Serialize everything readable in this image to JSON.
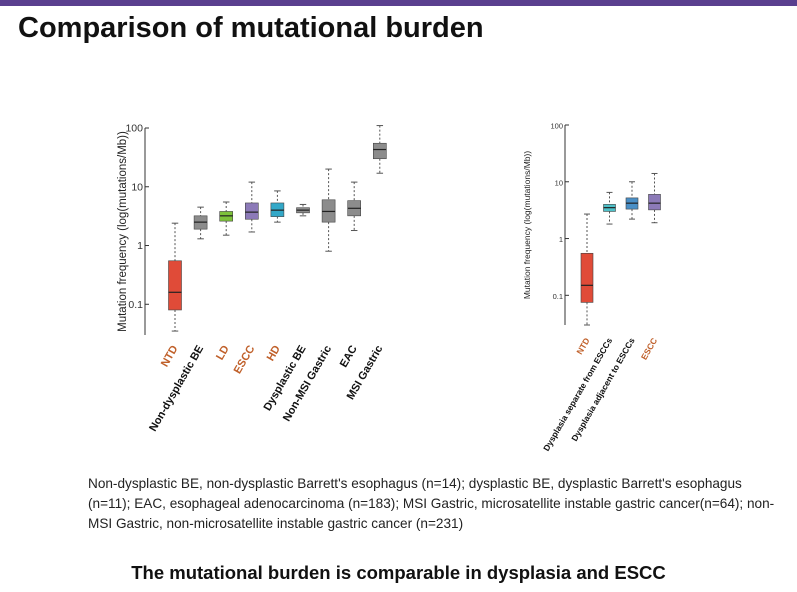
{
  "slide": {
    "title": "Comparison of mutational burden",
    "caption": "Non-dysplastic BE, non-dysplastic Barrett's esophagus (n=14); dysplastic BE, dysplastic Barrett's esophagus (n=11); EAC, esophageal adenocarcinoma (n=183); MSI Gastric, microsatellite instable gastric cancer(n=64); non-MSI Gastric, non-microsatellite instable gastric cancer (n=231)",
    "conclusion": "The mutational burden is comparable in dysplasia and ESCC",
    "accent_color": "#5a3f8f"
  },
  "chart_data": [
    {
      "type": "box",
      "title": "",
      "ylabel": "Mutation frequency (log(mutations/Mb))",
      "yscale": "log",
      "ylim": [
        0.03,
        100
      ],
      "yticks": [
        0.1,
        1,
        10,
        100
      ],
      "ytick_labels": [
        "0.1",
        "1",
        "10",
        "100"
      ],
      "categories": [
        {
          "label": "NTD",
          "label_color": "#c0602a",
          "color": "#e04b38",
          "min": 0.035,
          "q1": 0.08,
          "median": 0.16,
          "q3": 0.55,
          "max": 2.4
        },
        {
          "label": "Non-dysplastic BE",
          "label_color": "#111111",
          "color": "#8c8c8c",
          "min": 1.3,
          "q1": 1.9,
          "median": 2.5,
          "q3": 3.2,
          "max": 4.5
        },
        {
          "label": "LD",
          "label_color": "#c0602a",
          "color": "#7dc23a",
          "min": 1.5,
          "q1": 2.6,
          "median": 3.2,
          "q3": 3.8,
          "max": 5.5
        },
        {
          "label": "ESCC",
          "label_color": "#c0602a",
          "color": "#8c7ab8",
          "min": 1.7,
          "q1": 2.8,
          "median": 3.7,
          "q3": 5.3,
          "max": 12
        },
        {
          "label": "HD",
          "label_color": "#c0602a",
          "color": "#33a8c8",
          "min": 2.5,
          "q1": 3.1,
          "median": 4.0,
          "q3": 5.3,
          "max": 8.5
        },
        {
          "label": "Dysplastic BE",
          "label_color": "#111111",
          "color": "#8c8c8c",
          "min": 3.2,
          "q1": 3.6,
          "median": 4.0,
          "q3": 4.4,
          "max": 5.0
        },
        {
          "label": "Non-MSI Gastric",
          "label_color": "#111111",
          "color": "#8c8c8c",
          "min": 0.8,
          "q1": 2.5,
          "median": 3.8,
          "q3": 6.0,
          "max": 20
        },
        {
          "label": "EAC",
          "label_color": "#111111",
          "color": "#8c8c8c",
          "min": 1.8,
          "q1": 3.2,
          "median": 4.3,
          "q3": 5.8,
          "max": 12
        },
        {
          "label": "MSI Gastric",
          "label_color": "#111111",
          "color": "#8c8c8c",
          "min": 17,
          "q1": 30,
          "median": 43,
          "q3": 55,
          "max": 110
        }
      ]
    },
    {
      "type": "box",
      "title": "",
      "ylabel": "Mutation frequency (log(mutations/Mb))",
      "yscale": "log",
      "ylim": [
        0.03,
        100
      ],
      "yticks": [
        0.1,
        1,
        10,
        100
      ],
      "ytick_labels": [
        "0.1",
        "1",
        "10",
        "100"
      ],
      "categories": [
        {
          "label": "NTD",
          "label_color": "#c0602a",
          "color": "#e04b38",
          "min": 0.03,
          "q1": 0.075,
          "median": 0.15,
          "q3": 0.55,
          "max": 2.7
        },
        {
          "label": "Dysplasia separate from ESCCs",
          "label_color": "#111111",
          "color": "#4ec0c8",
          "min": 1.8,
          "q1": 3.0,
          "median": 3.5,
          "q3": 4.0,
          "max": 6.5
        },
        {
          "label": "Dysplasia adjacent to ESCCs",
          "label_color": "#111111",
          "color": "#4a8fc6",
          "min": 2.2,
          "q1": 3.3,
          "median": 4.2,
          "q3": 5.2,
          "max": 10
        },
        {
          "label": "ESCC",
          "label_color": "#c0602a",
          "color": "#8c7ab8",
          "min": 1.9,
          "q1": 3.2,
          "median": 4.2,
          "q3": 6.0,
          "max": 14
        }
      ]
    }
  ]
}
